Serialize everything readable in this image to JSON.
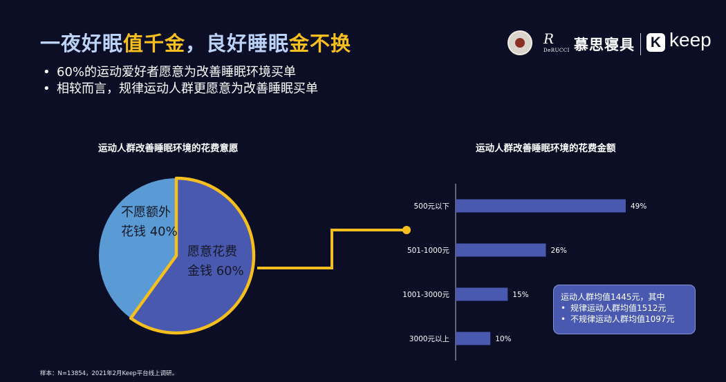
{
  "title": {
    "p1": "一夜好眠",
    "p2": "值千金",
    "p3": "，良好睡眠",
    "p4": "金不换"
  },
  "bullets": [
    "60%的运动爱好者愿意为改善睡眠环境买单",
    "相较而言，规律运动人群更愿意为改善睡眠买单"
  ],
  "logos": {
    "mark": "R",
    "sub": "DeRUCCI",
    "name": "慕思寝具",
    "k": "K",
    "keep": "keep"
  },
  "pie_labels": {
    "no_line1": "不愿额外",
    "no_line2": "花钱 40%",
    "yes_line1": "愿意花费",
    "yes_line2": "金钱 60%"
  },
  "note": {
    "line1": "运动人群均值1445元，其中",
    "line2": "规律运动人群均值1512元",
    "line3": "不规律运动人群均值1097元"
  },
  "footnote": "样本：N=13854，2021年2月Keep平台线上调研。",
  "colors": {
    "bg": "#0b0e24",
    "pie_yes": "#4a59b0",
    "pie_no": "#5b9bd5",
    "highlight": "#f7bf1e",
    "bar": "#4a59b0"
  },
  "chart_data": [
    {
      "type": "pie",
      "title": "运动人群改善睡眠环境的花费意愿",
      "slices": [
        {
          "label": "愿意花费金钱",
          "value": 60
        },
        {
          "label": "不愿额外花钱",
          "value": 40
        }
      ]
    },
    {
      "type": "bar",
      "orientation": "horizontal",
      "title": "运动人群改善睡眠环境的花费金额",
      "categories": [
        "500元以下",
        "501-1000元",
        "1001-3000元",
        "3000元以上"
      ],
      "values": [
        49,
        26,
        15,
        10
      ],
      "value_labels": [
        "49%",
        "26%",
        "15%",
        "10%"
      ]
    }
  ]
}
